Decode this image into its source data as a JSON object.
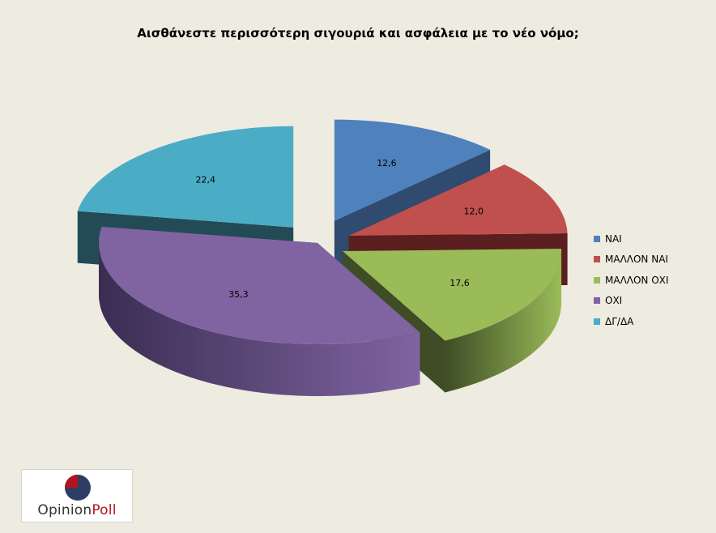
{
  "chart_data": {
    "type": "pie",
    "title": "Αισθάνεστε περισσότερη σιγουριά και ασφάλεια με το νέο νόμο;",
    "categories": [
      "ΝΑΙ",
      "ΜΑΛΛΟΝ ΝΑΙ",
      "ΜΑΛΛΟΝ ΟΧΙ",
      "ΟΧΙ",
      "ΔΓ/ΔΑ"
    ],
    "values": [
      12.6,
      12.0,
      17.6,
      35.3,
      22.4
    ],
    "value_labels": [
      "12,6",
      "12,0",
      "17,6",
      "35,3",
      "22,4"
    ],
    "colors": [
      "#4f81bd",
      "#c0504d",
      "#9bbb59",
      "#8064a2",
      "#4bacc6"
    ],
    "side_colors": [
      "#2f4b70",
      "#5a1f1e",
      "#3e4d25",
      "#3a2d52",
      "#224b55"
    ],
    "legend_position": "right",
    "style": "3d-exploded"
  },
  "logo": {
    "word1": "Opinion",
    "word2": "Poll"
  }
}
